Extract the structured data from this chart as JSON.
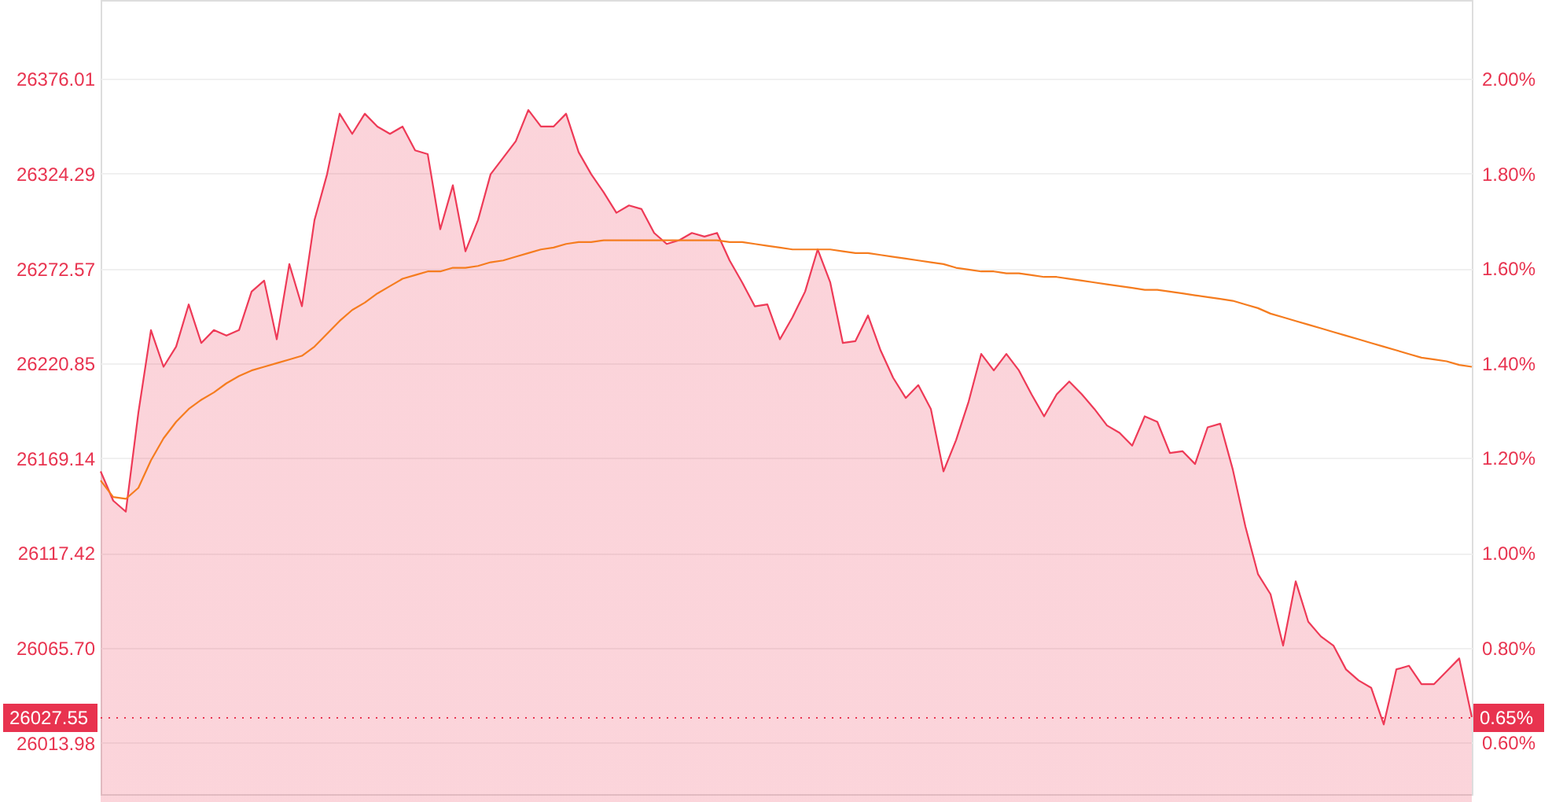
{
  "chart_data": {
    "type": "area",
    "categories": [
      null,
      null,
      null,
      null,
      null,
      null,
      null,
      null,
      null,
      null,
      null,
      null,
      null,
      null,
      null,
      null,
      null,
      null,
      null,
      null,
      null,
      null,
      null,
      null,
      null,
      null,
      null,
      null,
      null,
      null,
      null,
      null,
      null,
      null,
      null,
      null,
      null,
      null,
      null,
      null,
      null,
      null,
      null,
      null,
      null,
      null,
      null,
      null,
      null,
      null,
      null,
      null,
      null,
      null,
      null,
      null,
      null,
      null,
      null,
      null,
      null,
      null,
      null,
      null,
      null,
      null,
      null,
      null,
      null,
      null,
      null,
      null,
      null,
      null,
      null,
      null,
      null,
      null,
      null,
      null,
      null,
      null,
      null,
      null,
      null,
      null,
      null,
      null,
      null,
      null,
      null,
      null,
      null,
      null,
      null,
      null,
      null,
      null,
      null,
      null,
      null,
      null,
      null,
      null,
      null,
      null,
      null,
      null,
      null,
      null
    ],
    "series": [
      {
        "color": "#ee3a57",
        "values": [
          26162,
          26146,
          26140,
          26194,
          26239,
          26219,
          26230,
          26253,
          26232,
          26239,
          26236,
          26239,
          26260,
          26266,
          26234,
          26275,
          26252,
          26299,
          26324,
          26357,
          26346,
          26357,
          26350,
          26346,
          26350,
          26337,
          26335,
          26294,
          26318,
          26282,
          26299,
          26324,
          26333,
          26342,
          26359,
          26350,
          26350,
          26357,
          26336,
          26324,
          26314,
          26303,
          26307,
          26305,
          26292,
          26286,
          26288,
          26292,
          26290,
          26292,
          26277,
          26265,
          26252,
          26253,
          26234,
          26246,
          26260,
          26283,
          26265,
          26232,
          26233,
          26247,
          26228,
          26213,
          26202,
          26209,
          26196,
          26162,
          26179,
          26200,
          26226,
          26217,
          26226,
          26217,
          26204,
          26192,
          26204,
          26211,
          26204,
          26196,
          26187,
          26183,
          26176,
          26192,
          26189,
          26172,
          26173,
          26166,
          26186,
          26188,
          26163,
          26132,
          26106,
          26095,
          26067,
          26102,
          26080,
          26072,
          26067,
          26054,
          26048,
          26044,
          26024,
          26054,
          26056,
          26046,
          26046,
          26053,
          26060,
          26028
        ]
      },
      {
        "type": "line",
        "color": "#f57c1f",
        "values": [
          26157,
          26148,
          26147,
          26153,
          26168,
          26180,
          26189,
          26196,
          26201,
          26205,
          26210,
          26214,
          26217,
          26219,
          26221,
          26223,
          26225,
          26230,
          26237,
          26244,
          26250,
          26254,
          26259,
          26263,
          26267,
          26269,
          26271,
          26271,
          26273,
          26273,
          26274,
          26276,
          26277,
          26279,
          26281,
          26283,
          26284,
          26286,
          26287,
          26287,
          26288,
          26288,
          26288,
          26288,
          26288,
          26288,
          26288,
          26288,
          26288,
          26288,
          26287,
          26287,
          26286,
          26285,
          26284,
          26283,
          26283,
          26283,
          26283,
          26282,
          26281,
          26281,
          26280,
          26279,
          26278,
          26277,
          26276,
          26275,
          26273,
          26272,
          26271,
          26271,
          26270,
          26270,
          26269,
          26268,
          26268,
          26267,
          26266,
          26265,
          26264,
          26263,
          26262,
          26261,
          26261,
          26260,
          26259,
          26258,
          26257,
          26256,
          26255,
          26253,
          26251,
          26248,
          26246,
          26244,
          26242,
          26240,
          26238,
          26236,
          26234,
          26232,
          26230,
          26228,
          26226,
          26224,
          26223,
          26222,
          26220,
          26219
        ]
      }
    ],
    "ylim": [
      25986,
      26419
    ],
    "yticks": [
      26013.98,
      {
        "value": 26065.7,
        "label": "26065.70"
      },
      26117.42,
      26169.14,
      26220.85,
      26272.57,
      26324.29,
      26376.01
    ],
    "y2lim": [
      0.491,
      2.166
    ],
    "y2ticks": [
      {
        "value": 0.6,
        "label": "0.60%"
      },
      {
        "value": 0.8,
        "label": "0.80%"
      },
      {
        "value": 1.0,
        "label": "1.00%"
      },
      {
        "value": 1.2,
        "label": "1.20%"
      },
      {
        "value": 1.4,
        "label": "1.40%"
      },
      {
        "value": 1.6,
        "label": "1.60%"
      },
      {
        "value": 1.8,
        "label": "1.80%"
      },
      {
        "value": 2.0,
        "label": "2.00%"
      }
    ],
    "ref_lines": [
      {
        "axis": "y",
        "value": 26027.55,
        "label": "26027.55",
        "color": "#e8334f",
        "line_style": "dotted"
      }
    ],
    "annotations": [
      "0.65%"
    ],
    "grid": "y"
  }
}
